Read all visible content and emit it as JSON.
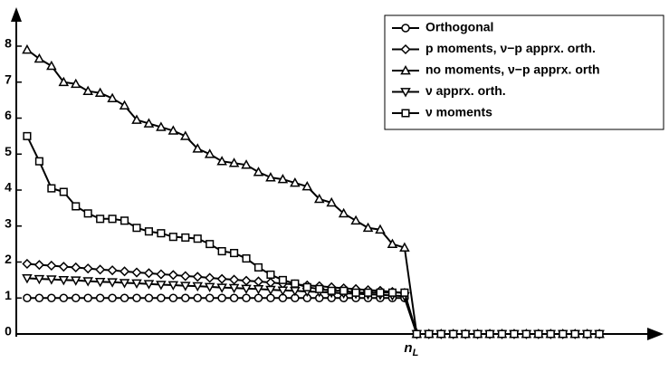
{
  "chart_data": {
    "type": "line",
    "x": [
      1,
      2,
      3,
      4,
      5,
      6,
      7,
      8,
      9,
      10,
      11,
      12,
      13,
      14,
      15,
      16,
      17,
      18,
      19,
      20,
      21,
      22,
      23,
      24,
      25,
      26,
      27,
      28,
      29,
      30,
      31,
      32,
      33,
      34,
      35,
      36,
      37,
      38,
      39,
      40,
      41,
      42,
      43,
      44,
      45,
      46,
      47,
      48
    ],
    "series": [
      {
        "name": "Orthogonal",
        "color": "#000000",
        "marker": "circle",
        "values": [
          1,
          1,
          1,
          1,
          1,
          1,
          1,
          1,
          1,
          1,
          1,
          1,
          1,
          1,
          1,
          1,
          1,
          1,
          1,
          1,
          1,
          1,
          1,
          1,
          1,
          1,
          1,
          1,
          1,
          1,
          1,
          1,
          0,
          0,
          0,
          0,
          0,
          0,
          0,
          0,
          0,
          0,
          0,
          0,
          0,
          0,
          0,
          0
        ]
      },
      {
        "name": "p moments, ν−p apprx. orth.",
        "color": "#000000",
        "marker": "diamond",
        "values": [
          1.95,
          1.92,
          1.9,
          1.87,
          1.85,
          1.82,
          1.79,
          1.77,
          1.74,
          1.71,
          1.69,
          1.66,
          1.64,
          1.61,
          1.59,
          1.56,
          1.53,
          1.51,
          1.48,
          1.46,
          1.43,
          1.4,
          1.38,
          1.35,
          1.33,
          1.3,
          1.27,
          1.25,
          1.22,
          1.2,
          1.17,
          1.14,
          0,
          0,
          0,
          0,
          0,
          0,
          0,
          0,
          0,
          0,
          0,
          0,
          0,
          0,
          0,
          0
        ]
      },
      {
        "name": "no moments, ν−p apprx. orth",
        "color": "#000000",
        "marker": "triangle-up",
        "values": [
          7.9,
          7.65,
          7.45,
          7.0,
          6.95,
          6.75,
          6.7,
          6.55,
          6.35,
          5.95,
          5.85,
          5.75,
          5.65,
          5.5,
          5.15,
          5.0,
          4.8,
          4.75,
          4.7,
          4.5,
          4.35,
          4.3,
          4.2,
          4.1,
          3.75,
          3.65,
          3.35,
          3.15,
          2.95,
          2.9,
          2.5,
          2.4,
          0,
          0,
          0,
          0,
          0,
          0,
          0,
          0,
          0,
          0,
          0,
          0,
          0,
          0,
          0,
          0
        ]
      },
      {
        "name": "ν apprx. orth.",
        "color": "#000000",
        "marker": "triangle-down",
        "values": [
          1.55,
          1.53,
          1.52,
          1.5,
          1.49,
          1.47,
          1.45,
          1.44,
          1.42,
          1.41,
          1.39,
          1.37,
          1.36,
          1.34,
          1.33,
          1.31,
          1.29,
          1.28,
          1.26,
          1.25,
          1.23,
          1.21,
          1.2,
          1.18,
          1.17,
          1.15,
          1.13,
          1.12,
          1.1,
          1.09,
          1.07,
          1.05,
          0,
          0,
          0,
          0,
          0,
          0,
          0,
          0,
          0,
          0,
          0,
          0,
          0,
          0,
          0,
          0
        ]
      },
      {
        "name": "ν moments",
        "color": "#000000",
        "marker": "square",
        "values": [
          5.5,
          4.8,
          4.05,
          3.95,
          3.55,
          3.35,
          3.2,
          3.2,
          3.15,
          2.95,
          2.85,
          2.8,
          2.7,
          2.68,
          2.65,
          2.5,
          2.3,
          2.25,
          2.1,
          1.85,
          1.65,
          1.5,
          1.4,
          1.3,
          1.25,
          1.2,
          1.2,
          1.15,
          1.15,
          1.15,
          1.15,
          1.15,
          0,
          0,
          0,
          0,
          0,
          0,
          0,
          0,
          0,
          0,
          0,
          0,
          0,
          0,
          0,
          0
        ]
      }
    ],
    "xlim": [
      0,
      53
    ],
    "ylim": [
      0,
      9
    ],
    "xticks": [
      {
        "value": 33,
        "label": "n",
        "subscript": "L"
      }
    ],
    "yticks": [
      0,
      1,
      2,
      3,
      4,
      5,
      6,
      7,
      8
    ],
    "legend": "upper right"
  }
}
